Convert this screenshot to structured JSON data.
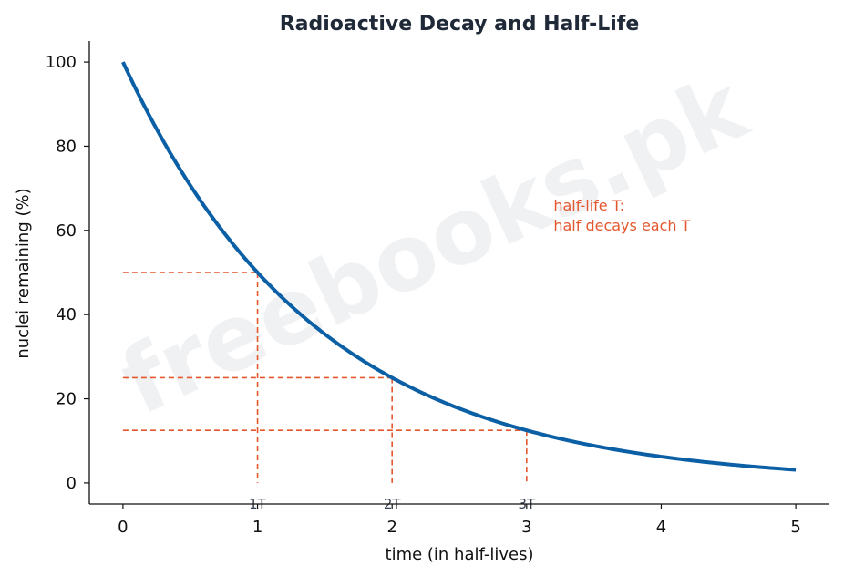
{
  "chart_data": {
    "type": "line",
    "title": "Radioactive Decay and Half-Life",
    "xlabel": "time (in half-lives)",
    "ylabel": "nuclei remaining (%)",
    "xlim": [
      -0.25,
      5.25
    ],
    "ylim": [
      -5,
      105
    ],
    "xticks": [
      0,
      1,
      2,
      3,
      4,
      5
    ],
    "yticks": [
      0,
      20,
      40,
      60,
      80,
      100
    ],
    "grid": false,
    "series": [
      {
        "x": [
          0,
          0.5,
          1,
          1.5,
          2,
          2.5,
          3,
          3.5,
          4,
          4.5,
          5
        ],
        "y": [
          100,
          70.7,
          50,
          35.4,
          25,
          17.7,
          12.5,
          8.8,
          6.25,
          4.4,
          3.125
        ],
        "color": "#0b5fa5"
      }
    ],
    "half_life_markers": [
      {
        "x": 1,
        "y": 50,
        "label": "1T"
      },
      {
        "x": 2,
        "y": 25,
        "label": "2T"
      },
      {
        "x": 3,
        "y": 12.5,
        "label": "3T"
      }
    ],
    "marker_color": "#e4572e",
    "annotation": {
      "x": 3.2,
      "y": 60,
      "lines": [
        "half-life T:",
        "half decays each T"
      ],
      "color": "#e4572e"
    },
    "watermark": "freebooks.pk"
  }
}
